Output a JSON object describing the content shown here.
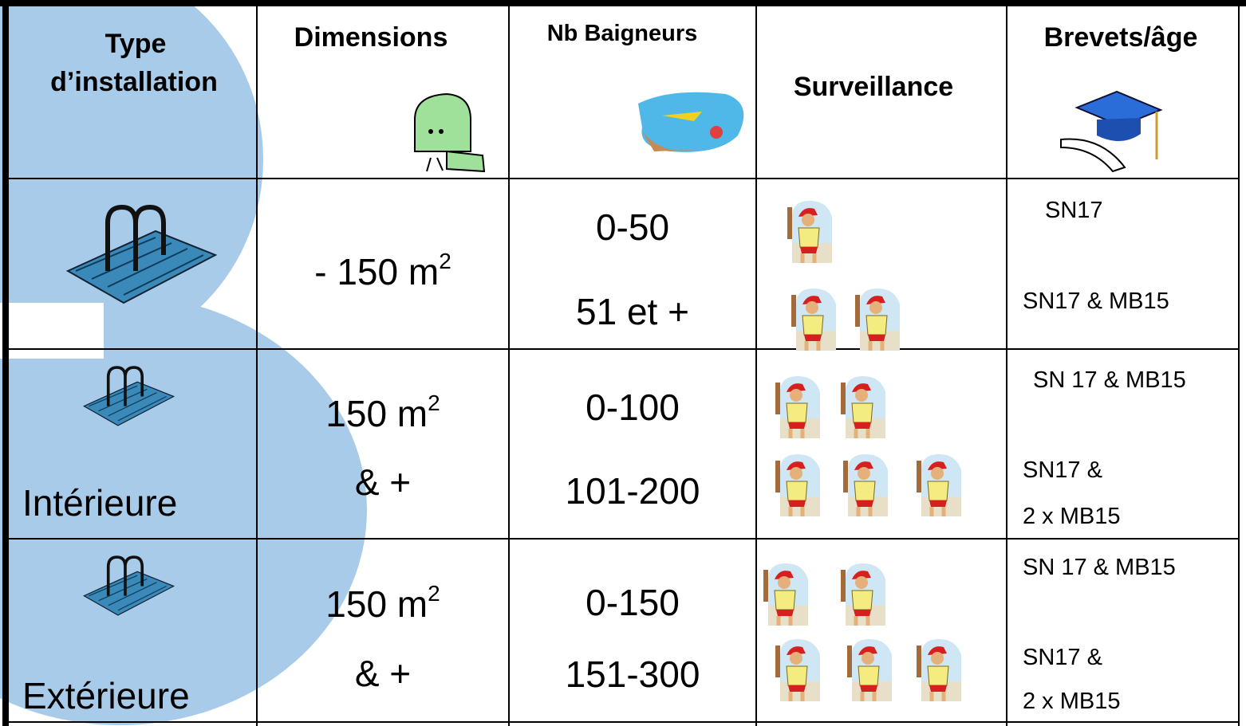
{
  "columns": [
    [
      "Type",
      "d’installation"
    ],
    [
      "Dimensions"
    ],
    [
      "Nb Baigneurs"
    ],
    [
      "Surveillance"
    ],
    [
      "Brevets/âge"
    ]
  ],
  "rows": [
    {
      "dimensions": {
        "text": "- 150 m",
        "sup": "2"
      },
      "bathers": [
        "0-50",
        "51 et +"
      ],
      "certificates": [
        [
          "SN17"
        ],
        [
          "SN17 & MB15"
        ]
      ]
    },
    {
      "type": "Intérieure",
      "dimensions": {
        "text": "150 m",
        "sup": "2",
        "line2": "& +"
      },
      "bathers": [
        "0-100",
        "101-200"
      ],
      "certificates": [
        [
          "SN 17 & MB15"
        ],
        [
          "SN17 &",
          "2 x MB15"
        ]
      ]
    },
    {
      "type": "Extérieure",
      "dimensions": {
        "text": "150 m",
        "sup": "2",
        "line2": "& +"
      },
      "bathers": [
        "0-150",
        "151-300"
      ],
      "certificates": [
        [
          "SN 17 & MB15"
        ],
        [
          "SN17 &",
          "2 x MB15"
        ]
      ]
    }
  ]
}
